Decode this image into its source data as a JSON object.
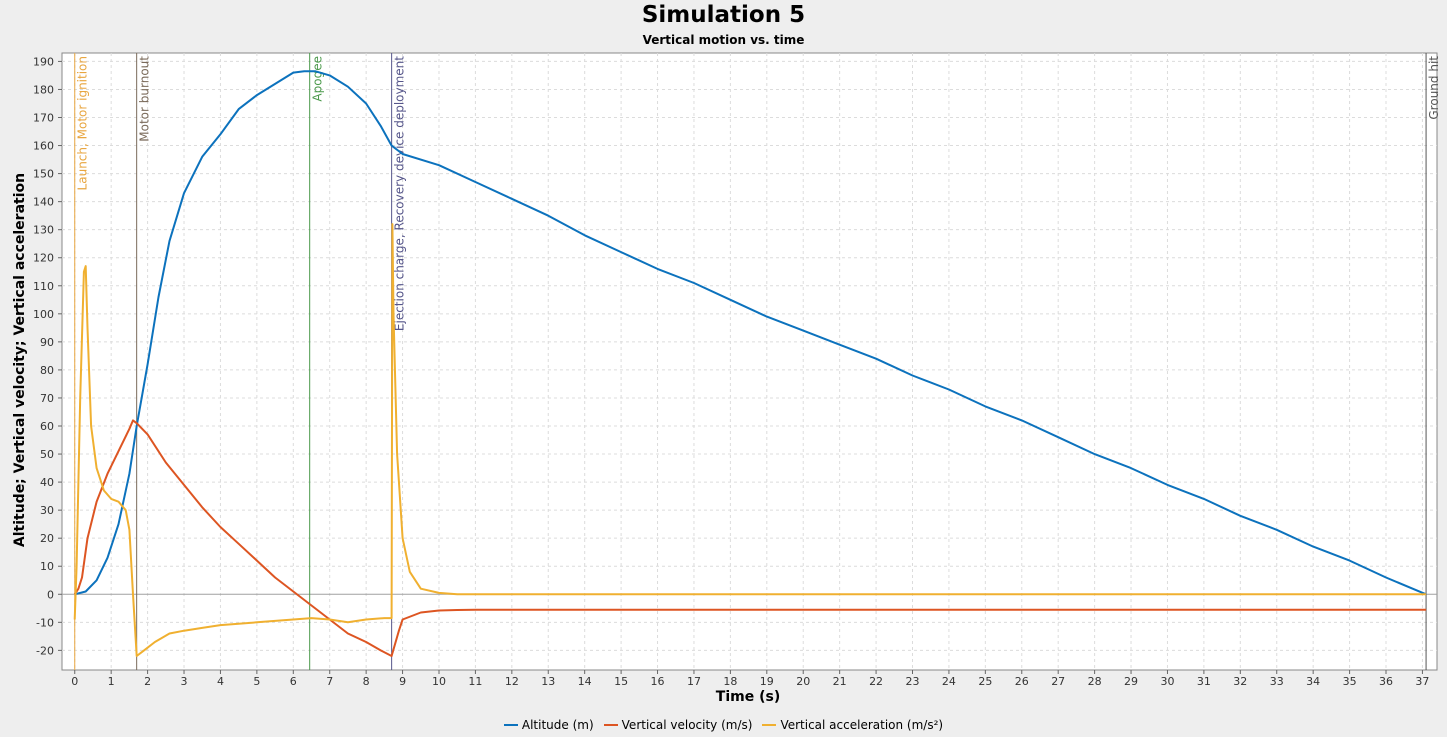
{
  "chart_data": {
    "type": "line",
    "title": "Simulation 5",
    "subtitle": "Vertical motion vs. time",
    "xlabel": "Time (s)",
    "ylabel": "Altitude; Vertical velocity; Vertical acceleration",
    "xlim": [
      -0.35,
      37.4
    ],
    "ylim": [
      -27,
      193
    ],
    "xticks": [
      0,
      1,
      2,
      3,
      4,
      5,
      6,
      7,
      8,
      9,
      10,
      11,
      12,
      13,
      14,
      15,
      16,
      17,
      18,
      19,
      20,
      21,
      22,
      23,
      24,
      25,
      26,
      27,
      28,
      29,
      30,
      31,
      32,
      33,
      34,
      35,
      36,
      37
    ],
    "yticks": [
      -20,
      -10,
      0,
      10,
      20,
      30,
      40,
      50,
      60,
      70,
      80,
      90,
      100,
      110,
      120,
      130,
      140,
      150,
      160,
      170,
      180,
      190
    ],
    "grid": true,
    "legend_position": "bottom",
    "series": [
      {
        "name": "Altitude (m)",
        "color": "#0c72bd",
        "x": [
          0,
          0.3,
          0.6,
          0.9,
          1.2,
          1.5,
          1.7,
          2,
          2.3,
          2.6,
          3,
          3.5,
          4,
          4.5,
          5,
          5.5,
          6,
          6.3,
          6.6,
          7,
          7.5,
          8,
          8.4,
          8.7,
          9,
          10,
          11,
          12,
          13,
          14,
          15,
          16,
          17,
          18,
          19,
          20,
          21,
          22,
          23,
          24,
          25,
          26,
          27,
          28,
          29,
          30,
          31,
          32,
          33,
          34,
          35,
          36,
          37.1
        ],
        "values": [
          0,
          1,
          5,
          13,
          25,
          43,
          60,
          82,
          106,
          126,
          143,
          156,
          164,
          173,
          178,
          182,
          186,
          186.5,
          186.5,
          185,
          181,
          175,
          167,
          160,
          157,
          153,
          147,
          141,
          135,
          128,
          122,
          116,
          111,
          105,
          99,
          94,
          89,
          84,
          78,
          73,
          67,
          62,
          56,
          50,
          45,
          39,
          34,
          28,
          23,
          17,
          12,
          6,
          0
        ]
      },
      {
        "name": "Vertical velocity (m/s)",
        "color": "#dd5522",
        "x": [
          0,
          0.1,
          0.2,
          0.35,
          0.6,
          0.9,
          1.2,
          1.5,
          1.6,
          1.7,
          2,
          2.5,
          3,
          3.5,
          4,
          4.5,
          5,
          5.5,
          6,
          6.5,
          7,
          7.5,
          8,
          8.4,
          8.7,
          8.9,
          9,
          9.5,
          10,
          10.5,
          11,
          15,
          20,
          25,
          30,
          35,
          37.1
        ],
        "values": [
          0,
          2,
          6,
          20,
          33,
          43,
          51,
          59,
          62,
          61,
          57,
          47,
          39,
          31,
          24,
          18,
          12,
          6,
          1,
          -4,
          -9,
          -14,
          -17,
          -20,
          -22,
          -13,
          -9,
          -6.5,
          -5.8,
          -5.6,
          -5.5,
          -5.5,
          -5.5,
          -5.5,
          -5.5,
          -5.5,
          -5.5
        ]
      },
      {
        "name": "Vertical acceleration (m/s²)",
        "color": "#f0b030",
        "x": [
          0,
          0.05,
          0.15,
          0.25,
          0.3,
          0.35,
          0.45,
          0.6,
          0.8,
          1,
          1.2,
          1.4,
          1.5,
          1.6,
          1.7,
          1.9,
          2.2,
          2.6,
          3,
          3.5,
          4,
          4.5,
          5,
          5.5,
          6,
          6.5,
          7,
          7.5,
          8,
          8.5,
          8.7,
          8.72,
          8.75,
          8.85,
          9,
          9.2,
          9.5,
          10,
          10.5,
          12,
          20,
          30,
          37.1
        ],
        "values": [
          -9,
          10,
          70,
          115,
          117,
          95,
          60,
          45,
          37,
          34,
          33,
          30,
          23,
          0,
          -22,
          -20,
          -17,
          -14,
          -13,
          -12,
          -11,
          -10.5,
          -10,
          -9.5,
          -9,
          -8.5,
          -9,
          -10,
          -9,
          -8.5,
          -8.5,
          132,
          100,
          50,
          20,
          8,
          2,
          0.5,
          0,
          0,
          0,
          0,
          0
        ]
      }
    ],
    "events": [
      {
        "t": 0,
        "label": "Launch, Motor ignition",
        "color": "#e8a640"
      },
      {
        "t": 1.7,
        "label": "Motor burnout",
        "color": "#7a6a5a"
      },
      {
        "t": 6.45,
        "label": "Apogee",
        "color": "#4c9a4c"
      },
      {
        "t": 8.7,
        "label": "Ejection charge, Recovery device deployment",
        "color": "#55558a"
      },
      {
        "t": 37.1,
        "label": "Ground hit",
        "color": "#555555"
      }
    ]
  }
}
